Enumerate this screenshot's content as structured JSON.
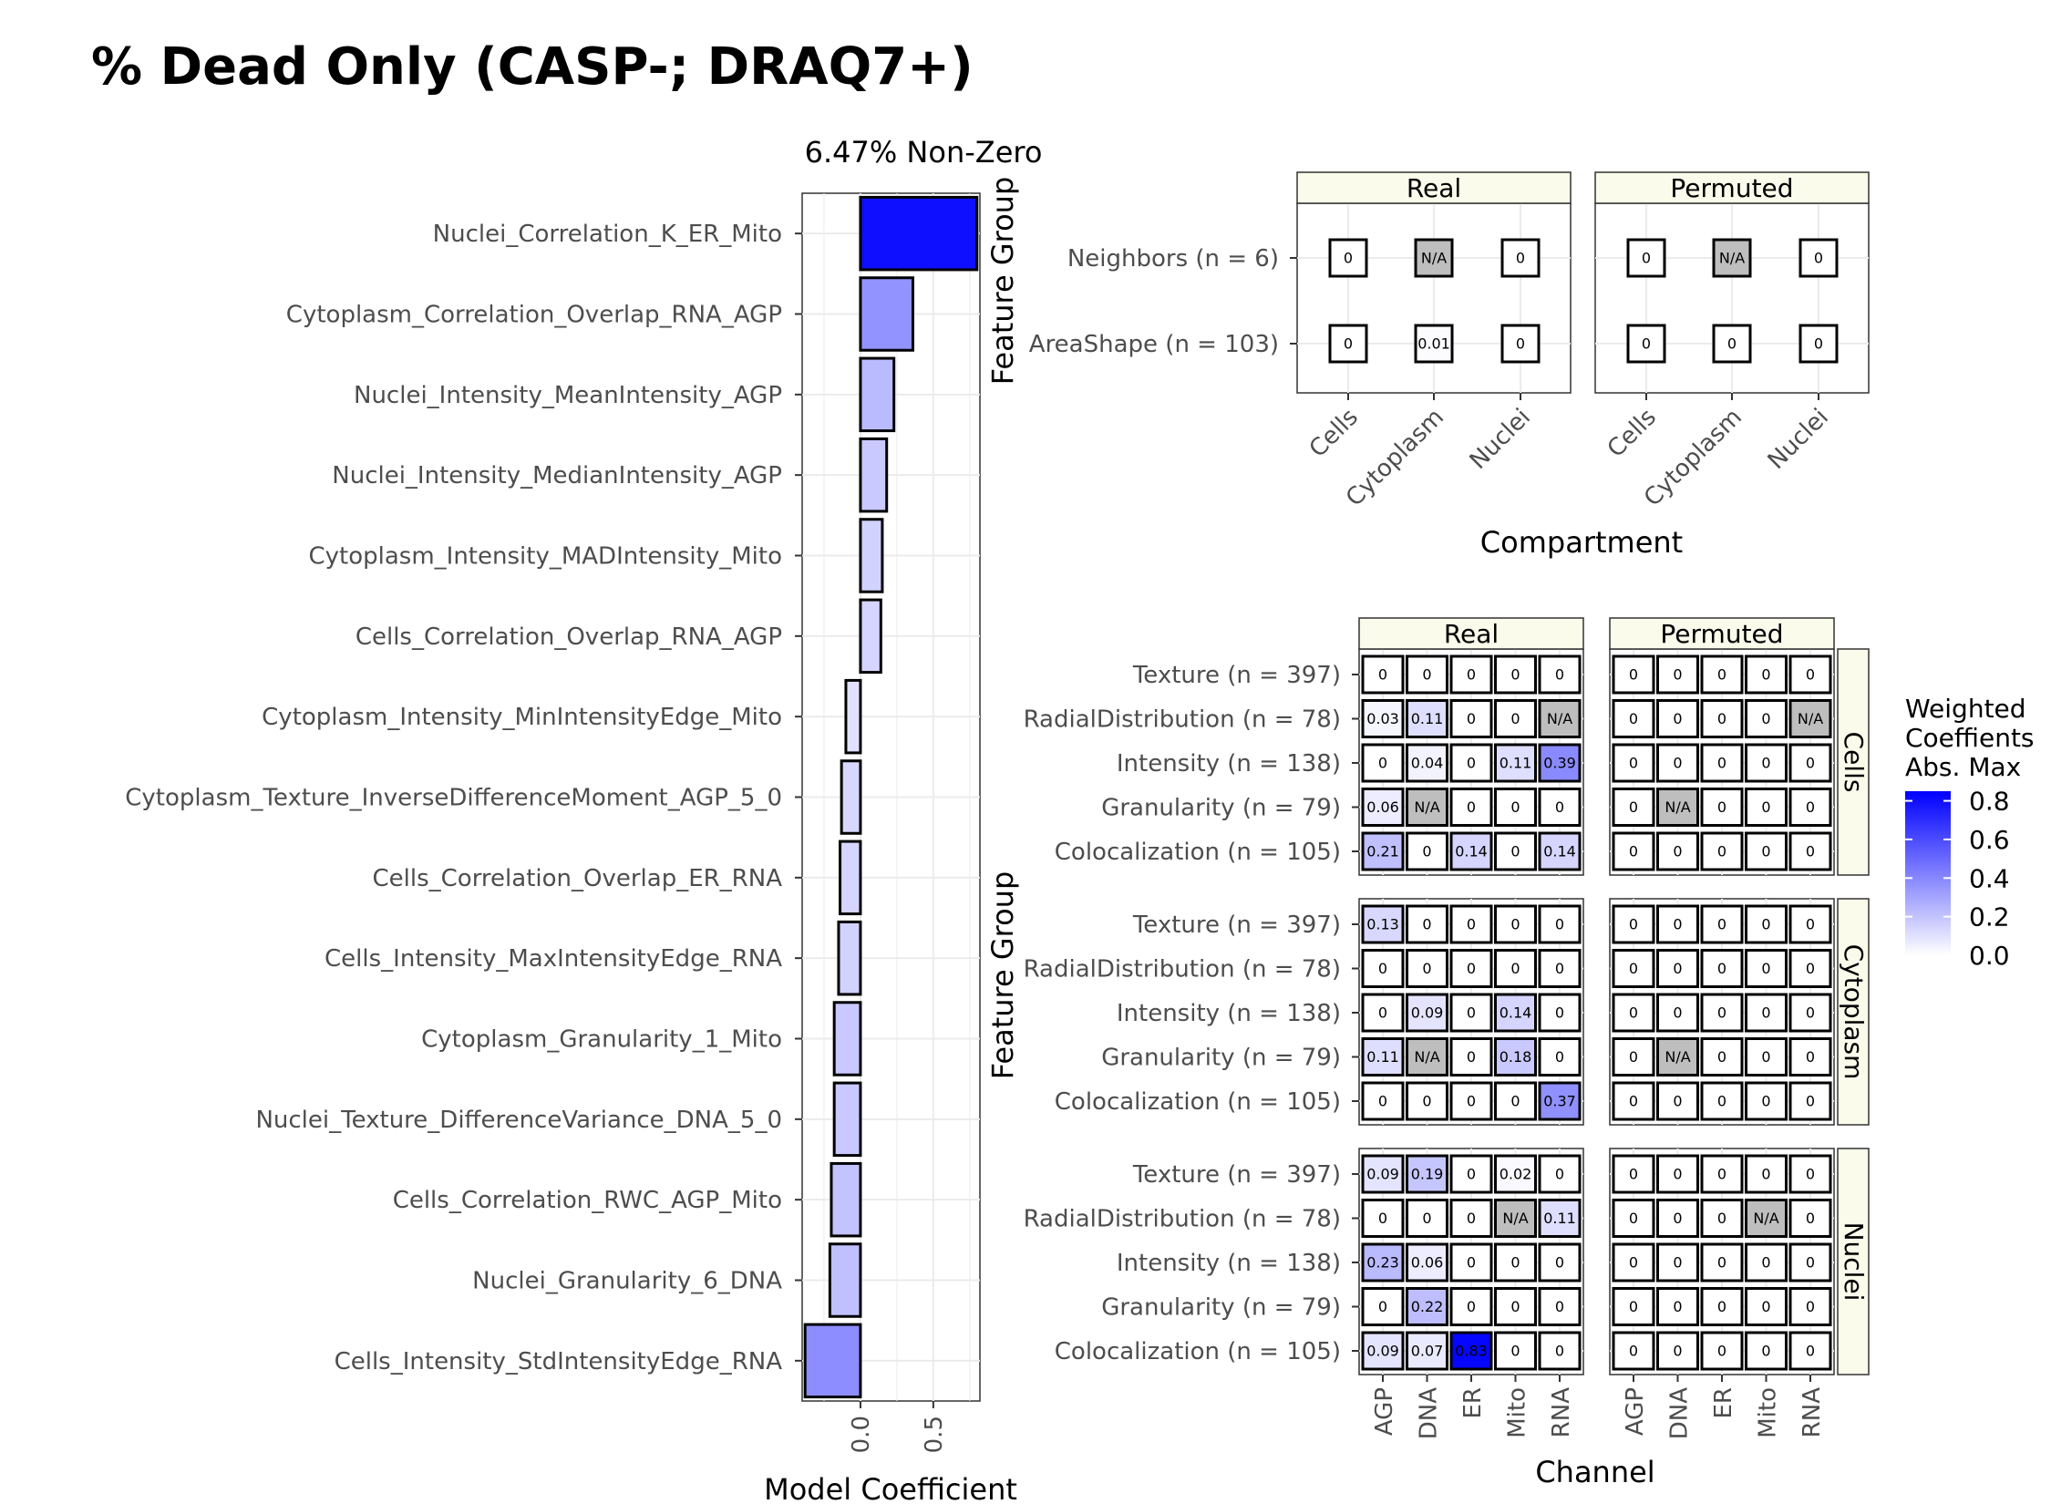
{
  "title": "% Dead Only (CASP-; DRAQ7+)",
  "colors": {
    "low": "#ffffff",
    "high": "#0000ff",
    "na": "#bebebe"
  },
  "chart_data": [
    {
      "type": "bar",
      "title": "6.47% Non-Zero",
      "xlabel": "Model Coefficient",
      "ylabel": "",
      "xlim": [
        -0.4,
        0.82
      ],
      "xticks": [
        "0.0",
        "0.5"
      ],
      "categories": [
        "Nuclei_Correlation_K_ER_Mito",
        "Cytoplasm_Correlation_Overlap_RNA_AGP",
        "Nuclei_Intensity_MeanIntensity_AGP",
        "Nuclei_Intensity_MedianIntensity_AGP",
        "Cytoplasm_Intensity_MADIntensity_Mito",
        "Cells_Correlation_Overlap_RNA_AGP",
        "Cytoplasm_Intensity_MinIntensityEdge_Mito",
        "Cytoplasm_Texture_InverseDifferenceMoment_AGP_5_0",
        "Cells_Correlation_Overlap_ER_RNA",
        "Cells_Intensity_MaxIntensityEdge_RNA",
        "Cytoplasm_Granularity_1_Mito",
        "Nuclei_Texture_DifferenceVariance_DNA_5_0",
        "Cells_Correlation_RWC_AGP_Mito",
        "Nuclei_Granularity_6_DNA",
        "Cells_Intensity_StdIntensityEdge_RNA"
      ],
      "values": [
        0.8,
        0.36,
        0.23,
        0.18,
        0.15,
        0.14,
        -0.1,
        -0.13,
        -0.14,
        -0.15,
        -0.18,
        -0.18,
        -0.2,
        -0.21,
        -0.38
      ]
    },
    {
      "type": "heatmap",
      "xlabel": "Compartment",
      "ylabel": "Feature Group",
      "panels": [
        "Real",
        "Permuted"
      ],
      "x": [
        "Cells",
        "Cytoplasm",
        "Nuclei"
      ],
      "rows": [
        "Neighbors (n = 6)",
        "AreaShape (n = 103)"
      ],
      "values": {
        "Real": [
          [
            "0",
            "N/A",
            "0"
          ],
          [
            "0",
            "0.01",
            "0"
          ]
        ],
        "Permuted": [
          [
            "0",
            "N/A",
            "0"
          ],
          [
            "0",
            "0",
            "0"
          ]
        ]
      }
    },
    {
      "type": "heatmap",
      "xlabel": "Channel",
      "ylabel": "Feature Group",
      "panels": [
        "Real",
        "Permuted"
      ],
      "facets": [
        "Cells",
        "Cytoplasm",
        "Nuclei"
      ],
      "x": [
        "AGP",
        "DNA",
        "ER",
        "Mito",
        "RNA"
      ],
      "rows": [
        "Texture (n = 397)",
        "RadialDistribution (n = 78)",
        "Intensity (n = 138)",
        "Granularity (n = 79)",
        "Colocalization (n = 105)"
      ],
      "values": {
        "Cells": {
          "Real": [
            [
              "0",
              "0",
              "0",
              "0",
              "0"
            ],
            [
              "0.03",
              "0.11",
              "0",
              "0",
              "N/A"
            ],
            [
              "0",
              "0.04",
              "0",
              "0.11",
              "0.39"
            ],
            [
              "0.06",
              "N/A",
              "0",
              "0",
              "0"
            ],
            [
              "0.21",
              "0",
              "0.14",
              "0",
              "0.14"
            ]
          ],
          "Permuted": [
            [
              "0",
              "0",
              "0",
              "0",
              "0"
            ],
            [
              "0",
              "0",
              "0",
              "0",
              "N/A"
            ],
            [
              "0",
              "0",
              "0",
              "0",
              "0"
            ],
            [
              "0",
              "N/A",
              "0",
              "0",
              "0"
            ],
            [
              "0",
              "0",
              "0",
              "0",
              "0"
            ]
          ]
        },
        "Cytoplasm": {
          "Real": [
            [
              "0.13",
              "0",
              "0",
              "0",
              "0"
            ],
            [
              "0",
              "0",
              "0",
              "0",
              "0"
            ],
            [
              "0",
              "0.09",
              "0",
              "0.14",
              "0"
            ],
            [
              "0.11",
              "N/A",
              "0",
              "0.18",
              "0"
            ],
            [
              "0",
              "0",
              "0",
              "0",
              "0.37"
            ]
          ],
          "Permuted": [
            [
              "0",
              "0",
              "0",
              "0",
              "0"
            ],
            [
              "0",
              "0",
              "0",
              "0",
              "0"
            ],
            [
              "0",
              "0",
              "0",
              "0",
              "0"
            ],
            [
              "0",
              "N/A",
              "0",
              "0",
              "0"
            ],
            [
              "0",
              "0",
              "0",
              "0",
              "0"
            ]
          ]
        },
        "Nuclei": {
          "Real": [
            [
              "0.09",
              "0.19",
              "0",
              "0.02",
              "0"
            ],
            [
              "0",
              "0",
              "0",
              "N/A",
              "0.11"
            ],
            [
              "0.23",
              "0.06",
              "0",
              "0",
              "0"
            ],
            [
              "0",
              "0.22",
              "0",
              "0",
              "0"
            ],
            [
              "0.09",
              "0.07",
              "0.83",
              "0",
              "0"
            ]
          ],
          "Permuted": [
            [
              "0",
              "0",
              "0",
              "0",
              "0"
            ],
            [
              "0",
              "0",
              "0",
              "N/A",
              "0"
            ],
            [
              "0",
              "0",
              "0",
              "0",
              "0"
            ],
            [
              "0",
              "0",
              "0",
              "0",
              "0"
            ],
            [
              "0",
              "0",
              "0",
              "0",
              "0"
            ]
          ]
        }
      },
      "legend": {
        "title": [
          "Weighted",
          "Coeffients",
          "Abs. Max"
        ],
        "ticks": [
          "0.8",
          "0.6",
          "0.4",
          "0.2",
          "0.0"
        ],
        "range": [
          0,
          0.85
        ],
        "position": "right"
      }
    }
  ]
}
